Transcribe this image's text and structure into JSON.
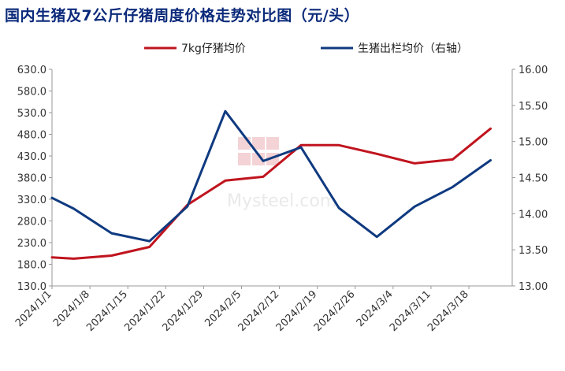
{
  "chart_data": {
    "type": "line",
    "title": "国内生猪及7公斤仔猪周度价格走势对比图（元/头）",
    "legend_position": "top",
    "grid": false,
    "x_ticks": [
      "2024/1/1",
      "2024/1/8",
      "2024/1/15",
      "2024/1/22",
      "2024/1/29",
      "2024/2/5",
      "2024/2/12",
      "2024/2/19",
      "2024/2/26",
      "2024/3/4",
      "2024/3/11",
      "2024/3/18"
    ],
    "xlim": [
      "2024/1/1",
      "2024/3/26"
    ],
    "y_left": {
      "ylim": [
        130,
        630
      ],
      "ticks": [
        "130.0",
        "180.0",
        "230.0",
        "280.0",
        "330.0",
        "380.0",
        "430.0",
        "480.0",
        "530.0",
        "580.0",
        "630.0"
      ]
    },
    "y_right": {
      "ylim": [
        13,
        16
      ],
      "ticks": [
        "13.00",
        "13.50",
        "14.00",
        "14.50",
        "15.00",
        "15.50",
        "16.00"
      ]
    },
    "series": [
      {
        "name": "7kg仔猪均价",
        "color": "#c0141e",
        "axis": "left",
        "points": [
          {
            "x": "2024/1/1",
            "y": 196
          },
          {
            "x": "2024/1/5",
            "y": 193
          },
          {
            "x": "2024/1/12",
            "y": 200
          },
          {
            "x": "2024/1/19",
            "y": 220
          },
          {
            "x": "2024/1/26",
            "y": 317
          },
          {
            "x": "2024/2/2",
            "y": 373
          },
          {
            "x": "2024/2/9",
            "y": 382
          },
          {
            "x": "2024/2/16",
            "y": 455
          },
          {
            "x": "2024/2/23",
            "y": 455
          },
          {
            "x": "2024/3/1",
            "y": 435
          },
          {
            "x": "2024/3/8",
            "y": 413
          },
          {
            "x": "2024/3/15",
            "y": 422
          },
          {
            "x": "2024/3/22",
            "y": 493
          }
        ]
      },
      {
        "name": "生猪出栏均价（右轴）",
        "color": "#0f3a80",
        "axis": "right",
        "points": [
          {
            "x": "2024/1/1",
            "y": 14.22
          },
          {
            "x": "2024/1/5",
            "y": 14.07
          },
          {
            "x": "2024/1/12",
            "y": 13.73
          },
          {
            "x": "2024/1/19",
            "y": 13.62
          },
          {
            "x": "2024/1/26",
            "y": 14.1
          },
          {
            "x": "2024/2/2",
            "y": 15.42
          },
          {
            "x": "2024/2/9",
            "y": 14.73
          },
          {
            "x": "2024/2/16",
            "y": 14.92
          },
          {
            "x": "2024/2/23",
            "y": 14.08
          },
          {
            "x": "2024/3/1",
            "y": 13.68
          },
          {
            "x": "2024/3/8",
            "y": 14.1
          },
          {
            "x": "2024/3/15",
            "y": 14.37
          },
          {
            "x": "2024/3/22",
            "y": 14.74
          }
        ]
      }
    ]
  }
}
